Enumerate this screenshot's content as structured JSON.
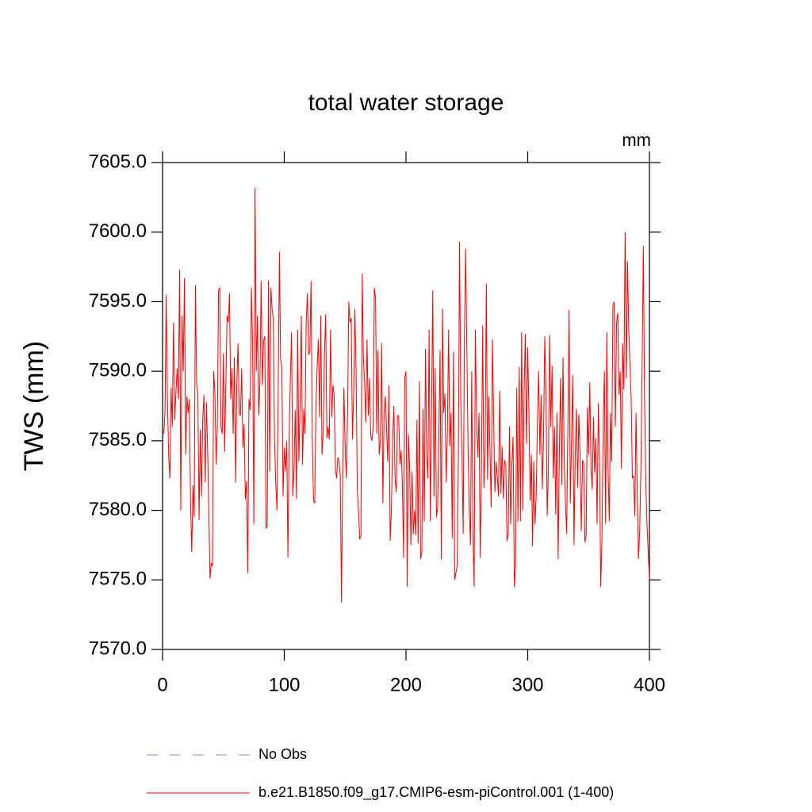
{
  "chart_data": {
    "type": "line",
    "title": "total water storage",
    "units": "mm",
    "ylabel": "TWS  (mm)",
    "xlim": [
      0,
      400
    ],
    "xticks": [
      0,
      100,
      200,
      300,
      400
    ],
    "ylim": [
      7570,
      7605
    ],
    "yticks": [
      {
        "value": 7570,
        "label": "7570.0"
      },
      {
        "value": 7575,
        "label": "7575.0"
      },
      {
        "value": 7580,
        "label": "7580.0"
      },
      {
        "value": 7585,
        "label": "7585.0"
      },
      {
        "value": 7590,
        "label": "7590.0"
      },
      {
        "value": 7595,
        "label": "7595.0"
      },
      {
        "value": 7600,
        "label": "7600.0"
      },
      {
        "value": 7605,
        "label": "7605.0"
      }
    ],
    "reference": {
      "name": "No Obs",
      "color": "#8a8ad0",
      "dash": "dashed"
    },
    "x": [
      1,
      2,
      3,
      4,
      5,
      6,
      7,
      8,
      9,
      10,
      11,
      12,
      13,
      14,
      15,
      16,
      17,
      18,
      19,
      20,
      21,
      22,
      23,
      24,
      25,
      26,
      27,
      28,
      29,
      30,
      31,
      32,
      33,
      34,
      35,
      36,
      37,
      38,
      39,
      40,
      41,
      42,
      43,
      44,
      45,
      46,
      47,
      48,
      49,
      50,
      51,
      52,
      53,
      54,
      55,
      56,
      57,
      58,
      59,
      60,
      61,
      62,
      63,
      64,
      65,
      66,
      67,
      68,
      69,
      70,
      71,
      72,
      73,
      74,
      75,
      76,
      77,
      78,
      79,
      80,
      81,
      82,
      83,
      84,
      85,
      86,
      87,
      88,
      89,
      90,
      91,
      92,
      93,
      94,
      95,
      96,
      97,
      98,
      99,
      100,
      101,
      102,
      103,
      104,
      105,
      106,
      107,
      108,
      109,
      110,
      111,
      112,
      113,
      114,
      115,
      116,
      117,
      118,
      119,
      120,
      121,
      122,
      123,
      124,
      125,
      126,
      127,
      128,
      129,
      130,
      131,
      132,
      133,
      134,
      135,
      136,
      137,
      138,
      139,
      140,
      141,
      142,
      143,
      144,
      145,
      146,
      147,
      148,
      149,
      150,
      151,
      152,
      153,
      154,
      155,
      156,
      157,
      158,
      159,
      160,
      161,
      162,
      163,
      164,
      165,
      166,
      167,
      168,
      169,
      170,
      171,
      172,
      173,
      174,
      175,
      176,
      177,
      178,
      179,
      180,
      181,
      182,
      183,
      184,
      185,
      186,
      187,
      188,
      189,
      190,
      191,
      192,
      193,
      194,
      195,
      196,
      197,
      198,
      199,
      200,
      201,
      202,
      203,
      204,
      205,
      206,
      207,
      208,
      209,
      210,
      211,
      212,
      213,
      214,
      215,
      216,
      217,
      218,
      219,
      220,
      221,
      222,
      223,
      224,
      225,
      226,
      227,
      228,
      229,
      230,
      231,
      232,
      233,
      234,
      235,
      236,
      237,
      238,
      239,
      240,
      241,
      242,
      243,
      244,
      245,
      246,
      247,
      248,
      249,
      250,
      251,
      252,
      253,
      254,
      255,
      256,
      257,
      258,
      259,
      260,
      261,
      262,
      263,
      264,
      265,
      266,
      267,
      268,
      269,
      270,
      271,
      272,
      273,
      274,
      275,
      276,
      277,
      278,
      279,
      280,
      281,
      282,
      283,
      284,
      285,
      286,
      287,
      288,
      289,
      290,
      291,
      292,
      293,
      294,
      295,
      296,
      297,
      298,
      299,
      300,
      301,
      302,
      303,
      304,
      305,
      306,
      307,
      308,
      309,
      310,
      311,
      312,
      313,
      314,
      315,
      316,
      317,
      318,
      319,
      320,
      321,
      322,
      323,
      324,
      325,
      326,
      327,
      328,
      329,
      330,
      331,
      332,
      333,
      334,
      335,
      336,
      337,
      338,
      339,
      340,
      341,
      342,
      343,
      344,
      345,
      346,
      347,
      348,
      349,
      350,
      351,
      352,
      353,
      354,
      355,
      356,
      357,
      358,
      359,
      360,
      361,
      362,
      363,
      364,
      365,
      366,
      367,
      368,
      369,
      370,
      371,
      372,
      373,
      374,
      375,
      376,
      377,
      378,
      379,
      380,
      381,
      382,
      383,
      384,
      385,
      386,
      387,
      388,
      389,
      390,
      391,
      392,
      393,
      394,
      395,
      396,
      397,
      398,
      399,
      400
    ],
    "series": [
      {
        "name": "b.e21.B1850.f09_g17.CMIP6-esm-piControl.001 (1-400)",
        "color": "#ff0000",
        "values": [
          7585.5,
          7587,
          7595.5,
          7588,
          7584,
          7582.3,
          7588.8,
          7586,
          7593.5,
          7586.5,
          7588.5,
          7590.2,
          7588,
          7597.3,
          7580,
          7594,
          7590,
          7596.7,
          7584,
          7588.2,
          7587,
          7588,
          7580.5,
          7577,
          7581.8,
          7579.5,
          7596.2,
          7589,
          7588.5,
          7579.3,
          7585.8,
          7581,
          7586.5,
          7588.3,
          7582,
          7587.8,
          7584.5,
          7580,
          7575.1,
          7576.2,
          7576,
          7590,
          7588.5,
          7583.3,
          7586,
          7595.8,
          7596,
          7586,
          7585.5,
          7591.3,
          7584.2,
          7589,
          7594,
          7593.5,
          7595.6,
          7588,
          7590.2,
          7585.5,
          7591,
          7582,
          7589,
          7592,
          7587,
          7586.8,
          7590.2,
          7584.5,
          7586.2,
          7580.8,
          7582.1,
          7575.5,
          7588,
          7587.2,
          7596,
          7592,
          7579,
          7603.2,
          7590,
          7594,
          7586.8,
          7589.2,
          7596.5,
          7589,
          7592.2,
          7592.5,
          7578.7,
          7578.9,
          7596.5,
          7582.8,
          7596,
          7594.5,
          7593.7,
          7585,
          7582,
          7580,
          7588.5,
          7598.6,
          7590.8,
          7590.3,
          7581,
          7584.5,
          7582.8,
          7585,
          7576.6,
          7585.2,
          7589.5,
          7592.8,
          7581,
          7583,
          7587.2,
          7580.8,
          7593,
          7583.5,
          7587.8,
          7594,
          7583.3,
          7587.3,
          7585.5,
          7593.5,
          7595.6,
          7591.2,
          7591.4,
          7596.5,
          7585.3,
          7580.7,
          7580.5,
          7587.5,
          7590.2,
          7592.3,
          7586.7,
          7594,
          7584,
          7585.6,
          7591.2,
          7594.1,
          7585.2,
          7586,
          7585.1,
          7593,
          7586.7,
          7589,
          7588.3,
          7583,
          7582.3,
          7583.8,
          7583.5,
          7582.5,
          7573.4,
          7582.5,
          7588.8,
          7584.6,
          7582.3,
          7587,
          7595,
          7593.5,
          7593.8,
          7585.1,
          7588.4,
          7594.5,
          7590,
          7581.5,
          7580,
          7577.9,
          7578.2,
          7597,
          7591,
          7589.2,
          7586.3,
          7592.3,
          7586.8,
          7589.5,
          7585.4,
          7585,
          7586,
          7596,
          7595.2,
          7585.5,
          7591.5,
          7584,
          7585,
          7592,
          7580.5,
          7587,
          7588.2,
          7586,
          7583.5,
          7589,
          7577.8,
          7580,
          7585,
          7587.5,
          7582.3,
          7581.3,
          7586.8,
          7586.8,
          7583.3,
          7584.3,
          7582,
          7576.6,
          7589.5,
          7590,
          7574.5,
          7585.5,
          7583,
          7577.5,
          7582.8,
          7578.3,
          7580,
          7578.2,
          7586.5,
          7577.6,
          7589.3,
          7576.5,
          7577,
          7587.3,
          7579.2,
          7591.6,
          7584,
          7582.3,
          7593,
          7579.2,
          7587.3,
          7595.8,
          7581,
          7590.2,
          7579.5,
          7580.2,
          7585.5,
          7591.5,
          7576.5,
          7594.5,
          7587,
          7588.4,
          7582,
          7585.6,
          7593,
          7584.6,
          7587,
          7578,
          7591.4,
          7575,
          7575.5,
          7576,
          7583.5,
          7599.3,
          7588,
          7584,
          7578.3,
          7592.5,
          7598.8,
          7591.6,
          7584.4,
          7580,
          7577.5,
          7590,
          7578.3,
          7574.5,
          7593,
          7586.5,
          7583.8,
          7587,
          7576.6,
          7583,
          7593.3,
          7581.6,
          7584.3,
          7596.3,
          7582.2,
          7588.2,
          7584.3,
          7580.2,
          7592.3,
          7586.7,
          7581.3,
          7583.5,
          7582.4,
          7581,
          7588.6,
          7581.2,
          7584.6,
          7580.8,
          7583.6,
          7583.3,
          7577.8,
          7578.3,
          7586,
          7579,
          7583.3,
          7585.3,
          7574.5,
          7576,
          7588.8,
          7579.2,
          7590.3,
          7579.2,
          7592.8,
          7580,
          7588.3,
          7592.7,
          7584.8,
          7591.7,
          7587,
          7580.7,
          7584,
          7577.4,
          7583.5,
          7579,
          7581.2,
          7586.5,
          7590,
          7584,
          7588.3,
          7581.5,
          7585.2,
          7592.5,
          7588.5,
          7579.6,
          7583,
          7592.6,
          7586,
          7590.4,
          7582.3,
          7586,
          7579.7,
          7587,
          7576.5,
          7584.3,
          7589.5,
          7581.8,
          7591,
          7583.5,
          7580.6,
          7578.3,
          7586.2,
          7594.4,
          7580.5,
          7585,
          7589.7,
          7577.5,
          7583.8,
          7587.3,
          7581.6,
          7586.9,
          7584,
          7578.5,
          7583.6,
          7583.4,
          7577.7,
          7578.2,
          7587.4,
          7584,
          7589.2,
          7583,
          7581.5,
          7586.7,
          7582.7,
          7585.2,
          7579,
          7587.7,
          7583.5,
          7574.5,
          7578,
          7586,
          7590,
          7579,
          7592.8,
          7583,
          7579.2,
          7587,
          7583.5,
          7594.7,
          7595,
          7586,
          7593.5,
          7594.2,
          7588.3,
          7590,
          7583,
          7592,
          7588.7,
          7600,
          7589.5,
          7597.9,
          7593,
          7590.5,
          7588,
          7582.3,
          7582.5,
          7579.6,
          7587,
          7581,
          7576.5,
          7578.5,
          7583,
          7590.4,
          7599,
          7588,
          7582,
          7579,
          7577,
          7575
        ]
      }
    ]
  }
}
